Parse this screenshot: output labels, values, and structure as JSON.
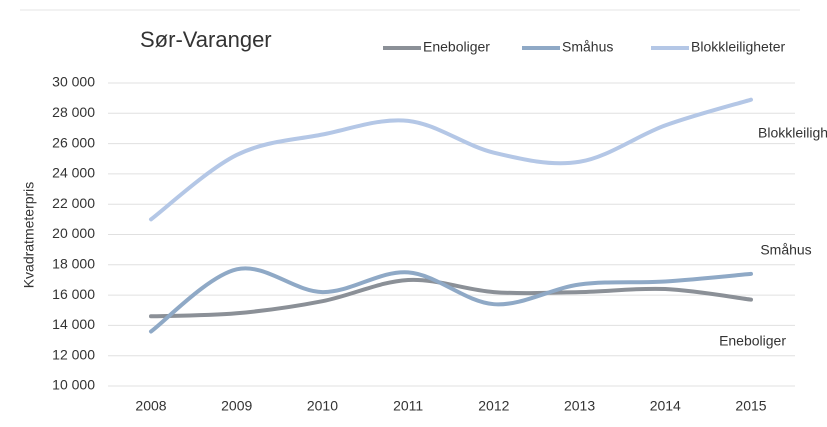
{
  "chart_data": {
    "type": "line",
    "title": "Sør-Varanger",
    "y_label": "Kvadratmeterpris",
    "categories": [
      "2008",
      "2009",
      "2010",
      "2011",
      "2012",
      "2013",
      "2014",
      "2015"
    ],
    "series": [
      {
        "name": "Eneboliger",
        "color": "#8b9097",
        "values": [
          14600,
          14800,
          15600,
          17000,
          16200,
          16200,
          16400,
          15700
        ]
      },
      {
        "name": "Småhus",
        "color": "#8fa9c6",
        "values": [
          13600,
          17700,
          16200,
          17500,
          15400,
          16700,
          16900,
          17400
        ]
      },
      {
        "name": "Blokkleiligheter",
        "color": "#b4c7e6",
        "values": [
          21000,
          25250,
          26600,
          27500,
          25400,
          24800,
          27200,
          28900
        ]
      }
    ],
    "ylim": [
      10000,
      30000
    ],
    "yticks": [
      {
        "value": 10000,
        "label": "10 000"
      },
      {
        "value": 12000,
        "label": "12 000"
      },
      {
        "value": 14000,
        "label": "14 000"
      },
      {
        "value": 16000,
        "label": "16 000"
      },
      {
        "value": 18000,
        "label": "18 000"
      },
      {
        "value": 20000,
        "label": "20 000"
      },
      {
        "value": 22000,
        "label": "22 000"
      },
      {
        "value": 24000,
        "label": "24 000"
      },
      {
        "value": 26000,
        "label": "26 000"
      },
      {
        "value": 28000,
        "label": "28 000"
      },
      {
        "value": 30000,
        "label": "30 000"
      }
    ],
    "grid": true,
    "legend": "top-right"
  }
}
